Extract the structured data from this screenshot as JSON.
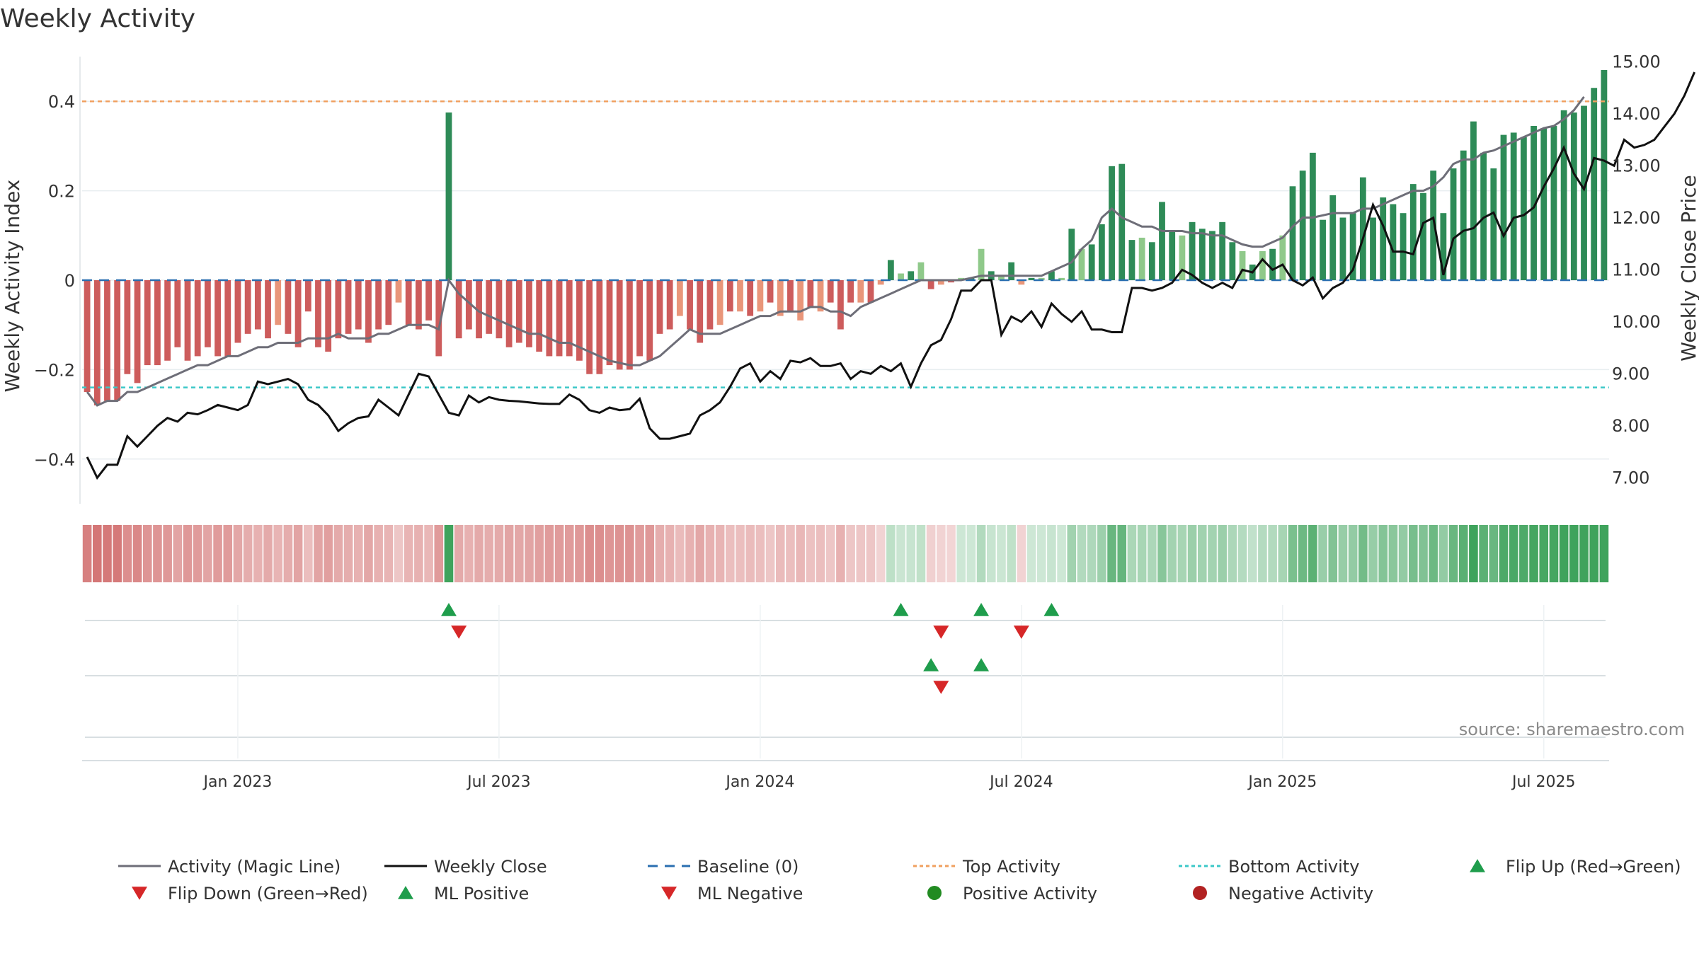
{
  "title": "Weekly Activity",
  "source": "source: sharemaestro.com",
  "colors": {
    "up_dark": "#2e8b57",
    "up_light": "#8fc98a",
    "down_dark": "#cd5c5c",
    "down_light": "#e9967a",
    "magic_line": "#6e6e78",
    "close": "#111111",
    "baseline": "#2a6fb0",
    "top": "#f0a060",
    "bottom": "#3cc8c8",
    "marker_up": "#1f9d4c",
    "marker_down": "#d62728",
    "dot_pos": "#228b22",
    "dot_neg": "#b22222"
  },
  "chart_data": {
    "type": "bar+line",
    "title": "Weekly Activity",
    "ylabel_left": "Weekly Activity Index",
    "ylabel_right": "Weekly Close Price",
    "y_left_ticks": [
      0.4,
      0.2,
      0,
      -0.2,
      -0.4
    ],
    "y_left_tick_labels": [
      "0.4",
      "0.2",
      "0",
      "−0.2",
      "−0.4"
    ],
    "y_left_range": [
      -0.5,
      0.5
    ],
    "y_right_ticks": [
      15,
      14,
      13,
      12,
      11,
      10,
      9,
      8,
      7
    ],
    "y_right_tick_labels": [
      "15.00",
      "14.00",
      "13.00",
      "12.00",
      "11.00",
      "10.00",
      "9.00",
      "8.00",
      "7.00"
    ],
    "y_right_range": [
      6.5,
      15.1
    ],
    "x_ticks": [
      0,
      26,
      52,
      78,
      104,
      130
    ],
    "x_tick_labels": [
      "Jan 2023",
      "Jul 2023",
      "Jan 2024",
      "Jul 2024",
      "Jan 2025",
      "Jul 2025"
    ],
    "x_axis_unit": "weeks since Jan 2023 (start week = -15)",
    "x_start_week": -15,
    "top_activity": 0.4,
    "bottom_activity": -0.24,
    "activity": [
      -0.25,
      -0.28,
      -0.27,
      -0.27,
      -0.21,
      -0.23,
      -0.19,
      -0.19,
      -0.18,
      -0.15,
      -0.18,
      -0.17,
      -0.15,
      -0.17,
      -0.17,
      -0.14,
      -0.12,
      -0.11,
      -0.13,
      -0.1,
      -0.12,
      -0.15,
      -0.07,
      -0.15,
      -0.16,
      -0.13,
      -0.12,
      -0.11,
      -0.14,
      -0.11,
      -0.1,
      -0.05,
      -0.1,
      -0.11,
      -0.09,
      -0.17,
      0.375,
      -0.13,
      -0.11,
      -0.13,
      -0.12,
      -0.13,
      -0.15,
      -0.14,
      -0.15,
      -0.16,
      -0.17,
      -0.17,
      -0.17,
      -0.18,
      -0.21,
      -0.21,
      -0.19,
      -0.2,
      -0.2,
      -0.17,
      -0.18,
      -0.12,
      -0.11,
      -0.08,
      -0.11,
      -0.14,
      -0.11,
      -0.1,
      -0.07,
      -0.07,
      -0.08,
      -0.07,
      -0.05,
      -0.08,
      -0.07,
      -0.09,
      -0.06,
      -0.07,
      -0.05,
      -0.11,
      -0.05,
      -0.05,
      -0.05,
      -0.01,
      0.045,
      0.015,
      0.02,
      0.04,
      -0.02,
      -0.01,
      -0.005,
      0.005,
      0.005,
      0.07,
      0.02,
      0.01,
      0.04,
      -0.01,
      0.005,
      0.005,
      0.02,
      0.005,
      0.115,
      0.07,
      0.08,
      0.125,
      0.255,
      0.26,
      0.09,
      0.095,
      0.085,
      0.175,
      0.11,
      0.1,
      0.13,
      0.115,
      0.11,
      0.13,
      0.085,
      0.065,
      0.035,
      0.065,
      0.07,
      0.1,
      0.21,
      0.245,
      0.285,
      0.135,
      0.19,
      0.14,
      0.15,
      0.23,
      0.14,
      0.185,
      0.17,
      0.15,
      0.215,
      0.195,
      0.245,
      0.15,
      0.25,
      0.29,
      0.355,
      0.285,
      0.25,
      0.325,
      0.33,
      0.32,
      0.345,
      0.34,
      0.345,
      0.38,
      0.375,
      0.39,
      0.43,
      0.47
    ],
    "magic_line": [
      -0.25,
      -0.28,
      -0.27,
      -0.27,
      -0.25,
      -0.25,
      -0.24,
      -0.23,
      -0.22,
      -0.21,
      -0.2,
      -0.19,
      -0.19,
      -0.18,
      -0.17,
      -0.17,
      -0.16,
      -0.15,
      -0.15,
      -0.14,
      -0.14,
      -0.14,
      -0.13,
      -0.13,
      -0.13,
      -0.12,
      -0.13,
      -0.13,
      -0.13,
      -0.12,
      -0.12,
      -0.11,
      -0.1,
      -0.1,
      -0.1,
      -0.11,
      0.0,
      -0.03,
      -0.05,
      -0.07,
      -0.08,
      -0.09,
      -0.1,
      -0.11,
      -0.12,
      -0.12,
      -0.13,
      -0.14,
      -0.14,
      -0.15,
      -0.16,
      -0.17,
      -0.18,
      -0.185,
      -0.19,
      -0.19,
      -0.18,
      -0.17,
      -0.15,
      -0.13,
      -0.11,
      -0.12,
      -0.12,
      -0.12,
      -0.11,
      -0.1,
      -0.09,
      -0.08,
      -0.08,
      -0.07,
      -0.07,
      -0.07,
      -0.06,
      -0.06,
      -0.07,
      -0.07,
      -0.08,
      -0.06,
      -0.05,
      -0.04,
      -0.03,
      -0.02,
      -0.01,
      0.0,
      0.0,
      0.0,
      0.0,
      0.0,
      0.005,
      0.01,
      0.01,
      0.01,
      0.01,
      0.01,
      0.01,
      0.01,
      0.02,
      0.03,
      0.04,
      0.07,
      0.09,
      0.14,
      0.16,
      0.14,
      0.13,
      0.12,
      0.12,
      0.11,
      0.11,
      0.11,
      0.105,
      0.105,
      0.1,
      0.1,
      0.09,
      0.08,
      0.075,
      0.075,
      0.085,
      0.095,
      0.12,
      0.14,
      0.14,
      0.145,
      0.15,
      0.15,
      0.15,
      0.16,
      0.16,
      0.17,
      0.18,
      0.19,
      0.2,
      0.2,
      0.21,
      0.23,
      0.26,
      0.27,
      0.27,
      0.285,
      0.29,
      0.3,
      0.31,
      0.32,
      0.33,
      0.34,
      0.345,
      0.36,
      0.38,
      0.41
    ],
    "weekly_close": [
      7.4,
      7.0,
      7.25,
      7.25,
      7.8,
      7.6,
      7.8,
      8.0,
      8.15,
      8.08,
      8.25,
      8.22,
      8.3,
      8.4,
      8.35,
      8.3,
      8.4,
      8.85,
      8.8,
      8.85,
      8.9,
      8.8,
      8.5,
      8.4,
      8.2,
      7.9,
      8.05,
      8.15,
      8.18,
      8.5,
      8.35,
      8.2,
      8.6,
      9.0,
      8.95,
      8.6,
      8.25,
      8.2,
      8.58,
      8.45,
      8.55,
      8.5,
      8.48,
      8.47,
      8.45,
      8.43,
      8.42,
      8.42,
      8.6,
      8.5,
      8.3,
      8.25,
      8.35,
      8.3,
      8.32,
      8.52,
      7.95,
      7.75,
      7.75,
      7.8,
      7.85,
      8.2,
      8.3,
      8.45,
      8.75,
      9.1,
      9.2,
      8.85,
      9.05,
      8.9,
      9.25,
      9.22,
      9.3,
      9.15,
      9.15,
      9.2,
      8.9,
      9.05,
      9.0,
      9.15,
      9.05,
      9.2,
      8.75,
      9.2,
      9.55,
      9.65,
      10.05,
      10.6,
      10.6,
      10.8,
      10.8,
      9.75,
      10.1,
      10.0,
      10.2,
      9.9,
      10.35,
      10.15,
      10.0,
      10.2,
      9.85,
      9.85,
      9.8,
      9.8,
      10.65,
      10.65,
      10.6,
      10.65,
      10.75,
      11.0,
      10.9,
      10.75,
      10.65,
      10.75,
      10.65,
      11.0,
      10.95,
      11.2,
      11.0,
      11.1,
      10.8,
      10.7,
      10.85,
      10.45,
      10.65,
      10.75,
      11.0,
      11.6,
      12.25,
      11.85,
      11.35,
      11.35,
      11.3,
      11.9,
      12.0,
      10.9,
      11.6,
      11.75,
      11.8,
      12.0,
      12.1,
      11.65,
      12.0,
      12.05,
      12.2,
      12.6,
      12.95,
      13.35,
      12.85,
      12.55,
      13.15,
      13.1,
      13.0,
      13.5,
      13.35,
      13.4,
      13.5,
      13.75,
      14.0,
      14.35,
      14.8
    ],
    "flip_up": [
      36,
      81,
      89,
      96
    ],
    "flip_down": [
      37,
      85,
      93
    ],
    "ml_positive": [
      84,
      89
    ],
    "ml_negative": [
      85
    ],
    "heat_strip": "one cell per week colored by activity (green positive / red negative)"
  },
  "legend": [
    {
      "label": "Activity (Magic Line)",
      "kind": "line",
      "color": "#6e6e78",
      "dash": ""
    },
    {
      "label": "Weekly Close",
      "kind": "line",
      "color": "#111111",
      "dash": ""
    },
    {
      "label": "Baseline (0)",
      "kind": "line",
      "color": "#2a6fb0",
      "dash": "14 10"
    },
    {
      "label": "Top Activity",
      "kind": "line",
      "color": "#f0a060",
      "dash": "5 4"
    },
    {
      "label": "Bottom Activity",
      "kind": "line",
      "color": "#3cc8c8",
      "dash": "5 4"
    },
    {
      "label": "Flip Up (Red→Green)",
      "kind": "tri-up",
      "color": "#1f9d4c",
      "dash": ""
    },
    {
      "label": "Flip Down (Green→Red)",
      "kind": "tri-down",
      "color": "#d62728",
      "dash": ""
    },
    {
      "label": "ML Positive",
      "kind": "tri-up",
      "color": "#1f9d4c",
      "dash": ""
    },
    {
      "label": "ML Negative",
      "kind": "tri-down",
      "color": "#d62728",
      "dash": ""
    },
    {
      "label": "Positive Activity",
      "kind": "dot",
      "color": "#228b22",
      "dash": ""
    },
    {
      "label": "Negative Activity",
      "kind": "dot",
      "color": "#b22222",
      "dash": ""
    }
  ]
}
